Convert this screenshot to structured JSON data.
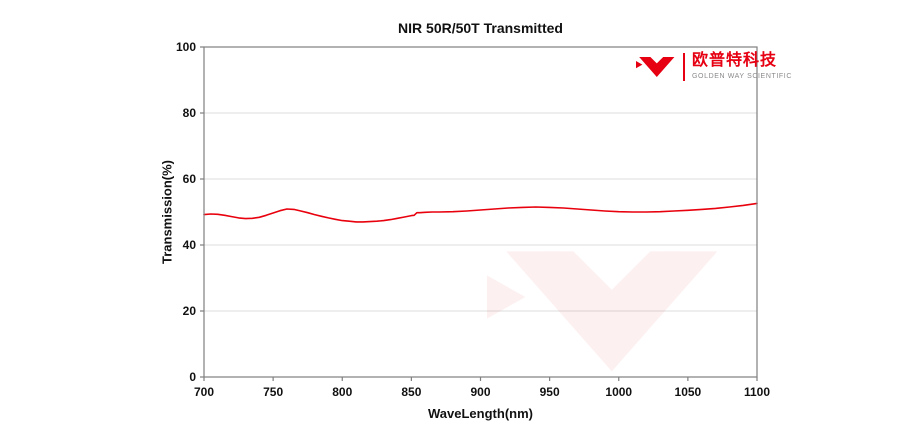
{
  "title": "NIR 50R/50T Transmitted",
  "logo": {
    "cn_text": "欧普特科技",
    "en_text": "GOLDEN WAY SCIENTIFIC",
    "color": "#e60012"
  },
  "chart_data": {
    "type": "line",
    "title": "NIR 50R/50T Transmitted",
    "xlabel": "WaveLength(nm)",
    "ylabel": "Transmission(%)",
    "xlim": [
      700,
      1100
    ],
    "ylim": [
      0,
      100
    ],
    "x_ticks": [
      700,
      750,
      800,
      850,
      900,
      950,
      1000,
      1050,
      1100
    ],
    "y_ticks": [
      0,
      20,
      40,
      60,
      80,
      100
    ],
    "grid": "horizontal",
    "legend": "none",
    "line_color": "#e8000d",
    "grid_color": "#dcdcdc",
    "axis_color": "#7f7f7f",
    "series": [
      {
        "name": "Transmission",
        "x": [
          700,
          705,
          710,
          715,
          720,
          725,
          730,
          735,
          740,
          745,
          750,
          755,
          760,
          765,
          770,
          775,
          780,
          785,
          790,
          795,
          800,
          805,
          810,
          815,
          820,
          825,
          830,
          835,
          840,
          845,
          850,
          852,
          854,
          856,
          860,
          865,
          870,
          880,
          890,
          900,
          910,
          920,
          930,
          940,
          950,
          960,
          970,
          980,
          990,
          1000,
          1010,
          1020,
          1030,
          1040,
          1050,
          1060,
          1070,
          1080,
          1090,
          1100
        ],
        "y": [
          49.2,
          49.4,
          49.3,
          49.0,
          48.6,
          48.2,
          48.0,
          48.1,
          48.4,
          49.0,
          49.7,
          50.4,
          50.9,
          50.8,
          50.3,
          49.8,
          49.2,
          48.7,
          48.2,
          47.8,
          47.4,
          47.2,
          47.0,
          47.0,
          47.1,
          47.2,
          47.4,
          47.7,
          48.1,
          48.5,
          48.9,
          49.0,
          49.8,
          49.8,
          49.9,
          50.0,
          50.0,
          50.1,
          50.3,
          50.6,
          50.9,
          51.2,
          51.4,
          51.5,
          51.4,
          51.2,
          50.9,
          50.6,
          50.3,
          50.1,
          50.0,
          50.0,
          50.1,
          50.3,
          50.5,
          50.8,
          51.1,
          51.5,
          52.0,
          52.6
        ]
      }
    ]
  }
}
